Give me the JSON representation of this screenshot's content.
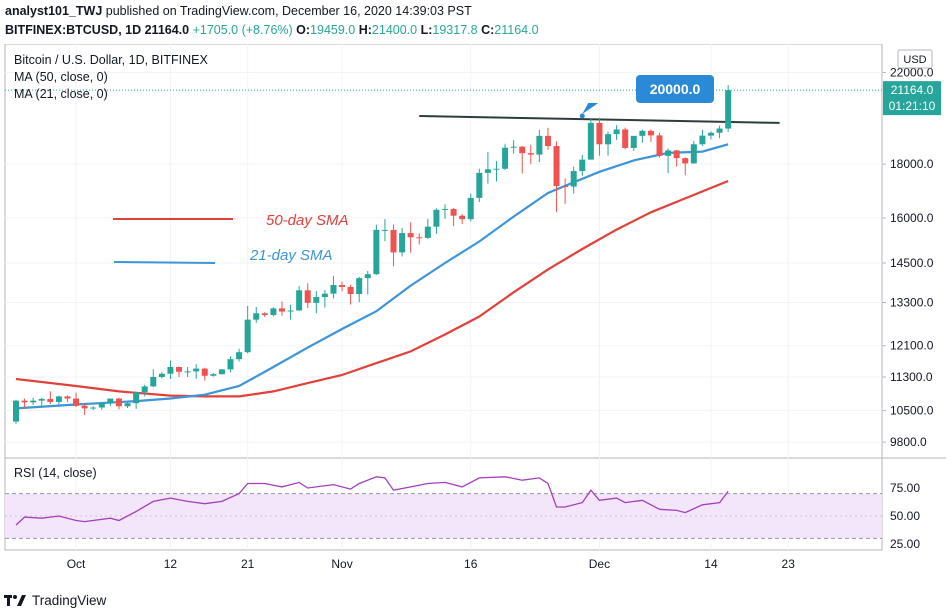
{
  "header": {
    "user": "analyst101_TWJ",
    "published": "published on TradingView.com, December 16, 2020 14:39:03 PST",
    "symbol": "BITFINEX:BTCUSD, 1D",
    "last": "21164.0",
    "change": "+1705.0 (+8.76%)",
    "o_label": "O:",
    "o_val": "19459.0",
    "h_label": "H:",
    "h_val": "21400.0",
    "l_label": "L:",
    "l_val": "19317.8",
    "c_label": "C:",
    "c_val": "21164.0"
  },
  "legend": {
    "title": "Bitcoin / U.S. Dollar, 1D, BITFINEX",
    "ma50": "MA (50, close, 0)",
    "ma21": "MA (21, close, 0)",
    "sma50_label": "50-day SMA",
    "sma21_label": "21-day SMA"
  },
  "price_axis": {
    "currency": "USD",
    "ticks": [
      "22000.0",
      "18000.0",
      "16000.0",
      "14500.0",
      "13300.0",
      "12100.0",
      "11300.0",
      "10500.0",
      "9800.0"
    ],
    "last_price_tag": "21164.0",
    "countdown_tag": "01:21:10"
  },
  "rsi_axis": {
    "title": "RSI (14, close)",
    "ticks": [
      "75.00",
      "50.00",
      "25.00"
    ]
  },
  "time_axis": {
    "ticks": [
      "Oct",
      "12",
      "21",
      "Nov",
      "16",
      "Dec",
      "14",
      "23"
    ]
  },
  "annotation": {
    "label": "20000.0"
  },
  "footer": {
    "brand": "TradingView"
  },
  "colors": {
    "up": "#26a69a",
    "down": "#ef5350",
    "ma50": "#e0413a",
    "ma21": "#3d94d9",
    "resistance": "#2c3e3c",
    "rsi_line": "#a43fbd",
    "rsi_band": "#f3e5fa",
    "callout": "#2b8ad8"
  },
  "chart_data": {
    "type": "candlestick",
    "price_scale": "log",
    "x_range": [
      "2020-09-24",
      "2020-12-27"
    ],
    "y_range": [
      9600,
      23000
    ],
    "candles": [
      {
        "date": "2020-09-24",
        "o": 10250,
        "h": 10750,
        "l": 10200,
        "c": 10730
      },
      {
        "date": "2020-09-25",
        "o": 10730,
        "h": 10780,
        "l": 10550,
        "c": 10690
      },
      {
        "date": "2020-09-26",
        "o": 10690,
        "h": 10800,
        "l": 10630,
        "c": 10730
      },
      {
        "date": "2020-09-27",
        "o": 10730,
        "h": 10800,
        "l": 10600,
        "c": 10770
      },
      {
        "date": "2020-09-28",
        "o": 10770,
        "h": 10950,
        "l": 10650,
        "c": 10700
      },
      {
        "date": "2020-09-29",
        "o": 10700,
        "h": 10850,
        "l": 10640,
        "c": 10830
      },
      {
        "date": "2020-09-30",
        "o": 10830,
        "h": 10850,
        "l": 10700,
        "c": 10780
      },
      {
        "date": "2020-10-01",
        "o": 10780,
        "h": 10920,
        "l": 10580,
        "c": 10610
      },
      {
        "date": "2020-10-02",
        "o": 10610,
        "h": 10660,
        "l": 10400,
        "c": 10550
      },
      {
        "date": "2020-10-03",
        "o": 10550,
        "h": 10600,
        "l": 10510,
        "c": 10570
      },
      {
        "date": "2020-10-04",
        "o": 10570,
        "h": 10700,
        "l": 10520,
        "c": 10680
      },
      {
        "date": "2020-10-05",
        "o": 10680,
        "h": 10780,
        "l": 10610,
        "c": 10780
      },
      {
        "date": "2020-10-06",
        "o": 10780,
        "h": 10800,
        "l": 10530,
        "c": 10600
      },
      {
        "date": "2020-10-07",
        "o": 10600,
        "h": 10690,
        "l": 10560,
        "c": 10670
      },
      {
        "date": "2020-10-08",
        "o": 10670,
        "h": 10940,
        "l": 10540,
        "c": 10930
      },
      {
        "date": "2020-10-09",
        "o": 10930,
        "h": 11110,
        "l": 10830,
        "c": 11070
      },
      {
        "date": "2020-10-10",
        "o": 11070,
        "h": 11490,
        "l": 11050,
        "c": 11300
      },
      {
        "date": "2020-10-11",
        "o": 11300,
        "h": 11420,
        "l": 11260,
        "c": 11380
      },
      {
        "date": "2020-10-12",
        "o": 11380,
        "h": 11720,
        "l": 11250,
        "c": 11550
      },
      {
        "date": "2020-10-13",
        "o": 11550,
        "h": 11560,
        "l": 11300,
        "c": 11430
      },
      {
        "date": "2020-10-14",
        "o": 11430,
        "h": 11550,
        "l": 11300,
        "c": 11440
      },
      {
        "date": "2020-10-15",
        "o": 11440,
        "h": 11620,
        "l": 11260,
        "c": 11510
      },
      {
        "date": "2020-10-16",
        "o": 11510,
        "h": 11530,
        "l": 11210,
        "c": 11330
      },
      {
        "date": "2020-10-17",
        "o": 11330,
        "h": 11400,
        "l": 11310,
        "c": 11370
      },
      {
        "date": "2020-10-18",
        "o": 11370,
        "h": 11500,
        "l": 11360,
        "c": 11490
      },
      {
        "date": "2020-10-19",
        "o": 11490,
        "h": 11820,
        "l": 11420,
        "c": 11750
      },
      {
        "date": "2020-10-20",
        "o": 11750,
        "h": 12020,
        "l": 11690,
        "c": 11930
      },
      {
        "date": "2020-10-21",
        "o": 11930,
        "h": 13200,
        "l": 11900,
        "c": 12810
      },
      {
        "date": "2020-10-22",
        "o": 12810,
        "h": 13170,
        "l": 12720,
        "c": 12990
      },
      {
        "date": "2020-10-23",
        "o": 12990,
        "h": 13020,
        "l": 12880,
        "c": 12940
      },
      {
        "date": "2020-10-24",
        "o": 12940,
        "h": 13160,
        "l": 12900,
        "c": 13130
      },
      {
        "date": "2020-10-25",
        "o": 13130,
        "h": 13330,
        "l": 12920,
        "c": 13040
      },
      {
        "date": "2020-10-26",
        "o": 13040,
        "h": 13230,
        "l": 12810,
        "c": 13070
      },
      {
        "date": "2020-10-27",
        "o": 13070,
        "h": 13790,
        "l": 13060,
        "c": 13660
      },
      {
        "date": "2020-10-28",
        "o": 13660,
        "h": 13870,
        "l": 13140,
        "c": 13290
      },
      {
        "date": "2020-10-29",
        "o": 13290,
        "h": 13640,
        "l": 12990,
        "c": 13460
      },
      {
        "date": "2020-10-30",
        "o": 13460,
        "h": 13670,
        "l": 13150,
        "c": 13560
      },
      {
        "date": "2020-10-31",
        "o": 13560,
        "h": 14100,
        "l": 13420,
        "c": 13820
      },
      {
        "date": "2020-11-01",
        "o": 13820,
        "h": 13920,
        "l": 13630,
        "c": 13760
      },
      {
        "date": "2020-11-02",
        "o": 13760,
        "h": 13830,
        "l": 13240,
        "c": 13550
      },
      {
        "date": "2020-11-03",
        "o": 13550,
        "h": 14070,
        "l": 13310,
        "c": 14030
      },
      {
        "date": "2020-11-04",
        "o": 14030,
        "h": 14250,
        "l": 13540,
        "c": 14150
      },
      {
        "date": "2020-11-05",
        "o": 14150,
        "h": 15770,
        "l": 14130,
        "c": 15590
      },
      {
        "date": "2020-11-06",
        "o": 15590,
        "h": 15960,
        "l": 15210,
        "c": 15590
      },
      {
        "date": "2020-11-07",
        "o": 15590,
        "h": 15770,
        "l": 14400,
        "c": 14840
      },
      {
        "date": "2020-11-08",
        "o": 14840,
        "h": 15660,
        "l": 14710,
        "c": 15480
      },
      {
        "date": "2020-11-09",
        "o": 15480,
        "h": 15850,
        "l": 14830,
        "c": 15340
      },
      {
        "date": "2020-11-10",
        "o": 15340,
        "h": 15470,
        "l": 15100,
        "c": 15320
      },
      {
        "date": "2020-11-11",
        "o": 15320,
        "h": 15970,
        "l": 15280,
        "c": 15700
      },
      {
        "date": "2020-11-12",
        "o": 15700,
        "h": 16340,
        "l": 15450,
        "c": 16290
      },
      {
        "date": "2020-11-13",
        "o": 16290,
        "h": 16490,
        "l": 15970,
        "c": 16320
      },
      {
        "date": "2020-11-14",
        "o": 16320,
        "h": 16350,
        "l": 15720,
        "c": 16080
      },
      {
        "date": "2020-11-15",
        "o": 16080,
        "h": 16140,
        "l": 15790,
        "c": 15960
      },
      {
        "date": "2020-11-16",
        "o": 15960,
        "h": 16880,
        "l": 15880,
        "c": 16720
      },
      {
        "date": "2020-11-17",
        "o": 16720,
        "h": 17820,
        "l": 16570,
        "c": 17660
      },
      {
        "date": "2020-11-18",
        "o": 17660,
        "h": 18490,
        "l": 17250,
        "c": 17800
      },
      {
        "date": "2020-11-19",
        "o": 17800,
        "h": 18120,
        "l": 17330,
        "c": 17820
      },
      {
        "date": "2020-11-20",
        "o": 17820,
        "h": 18820,
        "l": 17770,
        "c": 18660
      },
      {
        "date": "2020-11-21",
        "o": 18660,
        "h": 18970,
        "l": 18420,
        "c": 18700
      },
      {
        "date": "2020-11-22",
        "o": 18700,
        "h": 18730,
        "l": 17640,
        "c": 18440
      },
      {
        "date": "2020-11-23",
        "o": 18440,
        "h": 18780,
        "l": 18010,
        "c": 18380
      },
      {
        "date": "2020-11-24",
        "o": 18380,
        "h": 19400,
        "l": 18080,
        "c": 19150
      },
      {
        "date": "2020-11-25",
        "o": 19150,
        "h": 19490,
        "l": 18580,
        "c": 18730
      },
      {
        "date": "2020-11-26",
        "o": 18730,
        "h": 18920,
        "l": 16200,
        "c": 17160
      },
      {
        "date": "2020-11-27",
        "o": 17160,
        "h": 17450,
        "l": 16500,
        "c": 17140
      },
      {
        "date": "2020-11-28",
        "o": 17140,
        "h": 17900,
        "l": 16880,
        "c": 17730
      },
      {
        "date": "2020-11-29",
        "o": 17730,
        "h": 18370,
        "l": 17550,
        "c": 18180
      },
      {
        "date": "2020-11-30",
        "o": 18180,
        "h": 19880,
        "l": 18180,
        "c": 19700
      },
      {
        "date": "2020-12-01",
        "o": 19700,
        "h": 19920,
        "l": 18340,
        "c": 18800
      },
      {
        "date": "2020-12-02",
        "o": 18800,
        "h": 19330,
        "l": 18340,
        "c": 19220
      },
      {
        "date": "2020-12-03",
        "o": 19220,
        "h": 19600,
        "l": 18970,
        "c": 19420
      },
      {
        "date": "2020-12-04",
        "o": 19420,
        "h": 19500,
        "l": 18590,
        "c": 18650
      },
      {
        "date": "2020-12-05",
        "o": 18650,
        "h": 19150,
        "l": 18530,
        "c": 19150
      },
      {
        "date": "2020-12-06",
        "o": 19150,
        "h": 19420,
        "l": 18860,
        "c": 19360
      },
      {
        "date": "2020-12-07",
        "o": 19360,
        "h": 19420,
        "l": 18900,
        "c": 19170
      },
      {
        "date": "2020-12-08",
        "o": 19170,
        "h": 19280,
        "l": 18260,
        "c": 18330
      },
      {
        "date": "2020-12-09",
        "o": 18330,
        "h": 18630,
        "l": 17650,
        "c": 18550
      },
      {
        "date": "2020-12-10",
        "o": 18550,
        "h": 18570,
        "l": 17900,
        "c": 18240
      },
      {
        "date": "2020-12-11",
        "o": 18240,
        "h": 18270,
        "l": 17570,
        "c": 18030
      },
      {
        "date": "2020-12-12",
        "o": 18030,
        "h": 18940,
        "l": 18020,
        "c": 18800
      },
      {
        "date": "2020-12-13",
        "o": 18800,
        "h": 19410,
        "l": 18740,
        "c": 19160
      },
      {
        "date": "2020-12-14",
        "o": 19160,
        "h": 19340,
        "l": 19000,
        "c": 19280
      },
      {
        "date": "2020-12-15",
        "o": 19280,
        "h": 19580,
        "l": 19050,
        "c": 19459
      },
      {
        "date": "2020-12-16",
        "o": 19459,
        "h": 21400,
        "l": 19317.8,
        "c": 21164
      }
    ],
    "ma21": [
      [
        "2020-09-24",
        10550
      ],
      [
        "2020-10-01",
        10640
      ],
      [
        "2020-10-08",
        10720
      ],
      [
        "2020-10-12",
        10780
      ],
      [
        "2020-10-16",
        10870
      ],
      [
        "2020-10-20",
        11080
      ],
      [
        "2020-10-24",
        11550
      ],
      [
        "2020-10-28",
        12050
      ],
      [
        "2020-11-01",
        12550
      ],
      [
        "2020-11-05",
        13050
      ],
      [
        "2020-11-09",
        13800
      ],
      [
        "2020-11-13",
        14500
      ],
      [
        "2020-11-17",
        15200
      ],
      [
        "2020-11-21",
        16050
      ],
      [
        "2020-11-25",
        16900
      ],
      [
        "2020-11-28",
        17300
      ],
      [
        "2020-12-01",
        17700
      ],
      [
        "2020-12-05",
        18150
      ],
      [
        "2020-12-09",
        18450
      ],
      [
        "2020-12-13",
        18500
      ],
      [
        "2020-12-16",
        18800
      ]
    ],
    "ma50": [
      [
        "2020-09-24",
        11250
      ],
      [
        "2020-10-01",
        11080
      ],
      [
        "2020-10-06",
        10950
      ],
      [
        "2020-10-12",
        10850
      ],
      [
        "2020-10-16",
        10830
      ],
      [
        "2020-10-20",
        10830
      ],
      [
        "2020-10-24",
        10950
      ],
      [
        "2020-10-28",
        11150
      ],
      [
        "2020-11-01",
        11350
      ],
      [
        "2020-11-05",
        11650
      ],
      [
        "2020-11-09",
        11950
      ],
      [
        "2020-11-13",
        12400
      ],
      [
        "2020-11-17",
        12900
      ],
      [
        "2020-11-21",
        13600
      ],
      [
        "2020-11-25",
        14300
      ],
      [
        "2020-11-29",
        14950
      ],
      [
        "2020-12-03",
        15600
      ],
      [
        "2020-12-07",
        16200
      ],
      [
        "2020-12-11",
        16700
      ],
      [
        "2020-12-16",
        17350
      ]
    ],
    "resistance_line": [
      [
        "2020-11-10",
        20000
      ],
      [
        "2020-12-22",
        19700
      ]
    ],
    "rsi": [
      [
        "2020-09-24",
        42
      ],
      [
        "2020-09-25",
        49
      ],
      [
        "2020-09-27",
        48
      ],
      [
        "2020-09-29",
        50
      ],
      [
        "2020-10-01",
        46
      ],
      [
        "2020-10-02",
        45
      ],
      [
        "2020-10-05",
        48
      ],
      [
        "2020-10-06",
        46
      ],
      [
        "2020-10-08",
        54
      ],
      [
        "2020-10-10",
        63
      ],
      [
        "2020-10-12",
        66
      ],
      [
        "2020-10-14",
        63
      ],
      [
        "2020-10-16",
        61
      ],
      [
        "2020-10-18",
        63
      ],
      [
        "2020-10-20",
        70
      ],
      [
        "2020-10-21",
        79
      ],
      [
        "2020-10-23",
        79
      ],
      [
        "2020-10-25",
        76
      ],
      [
        "2020-10-27",
        80
      ],
      [
        "2020-10-28",
        75
      ],
      [
        "2020-10-31",
        78
      ],
      [
        "2020-11-02",
        74
      ],
      [
        "2020-11-03",
        79
      ],
      [
        "2020-11-05",
        85
      ],
      [
        "2020-11-06",
        84
      ],
      [
        "2020-11-07",
        73
      ],
      [
        "2020-11-09",
        76
      ],
      [
        "2020-11-11",
        79
      ],
      [
        "2020-11-13",
        80
      ],
      [
        "2020-11-15",
        76
      ],
      [
        "2020-11-17",
        84
      ],
      [
        "2020-11-20",
        85
      ],
      [
        "2020-11-22",
        82
      ],
      [
        "2020-11-24",
        84
      ],
      [
        "2020-11-25",
        79
      ],
      [
        "2020-11-26",
        58
      ],
      [
        "2020-11-27",
        58
      ],
      [
        "2020-11-29",
        62
      ],
      [
        "2020-11-30",
        73
      ],
      [
        "2020-12-01",
        64
      ],
      [
        "2020-12-03",
        66
      ],
      [
        "2020-12-04",
        62
      ],
      [
        "2020-12-06",
        64
      ],
      [
        "2020-12-08",
        56
      ],
      [
        "2020-12-10",
        55
      ],
      [
        "2020-12-11",
        53
      ],
      [
        "2020-12-13",
        60
      ],
      [
        "2020-12-15",
        62
      ],
      [
        "2020-12-16",
        72
      ]
    ]
  }
}
